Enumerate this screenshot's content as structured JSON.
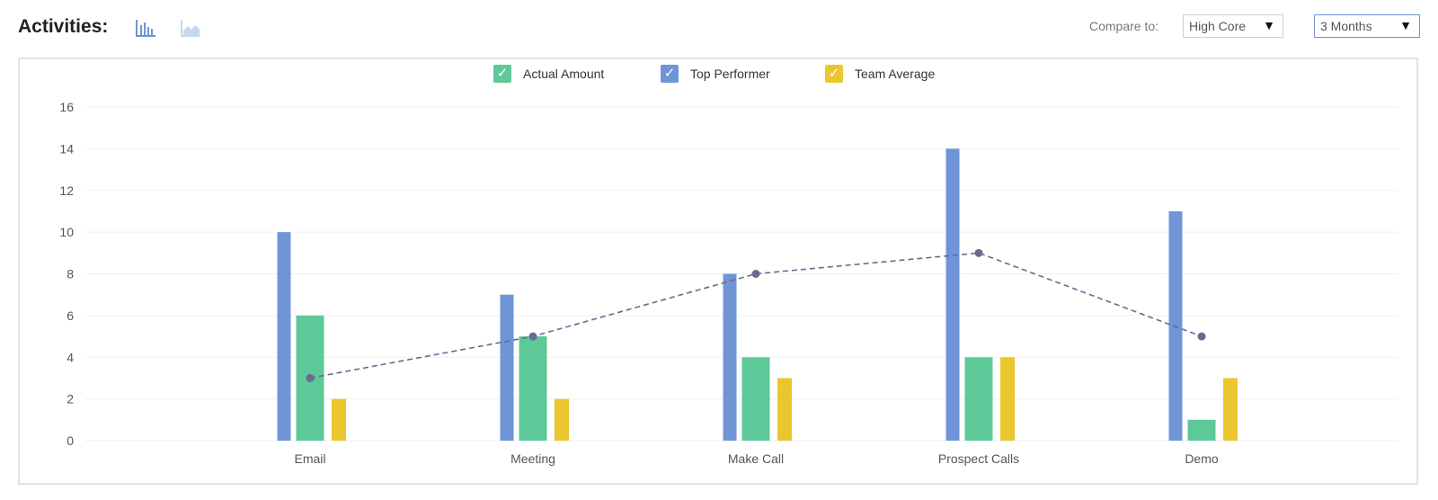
{
  "header": {
    "title": "Activities:",
    "compare_label": "Compare to:",
    "compare_value": "High Core",
    "period_value": "3 Months"
  },
  "icons": {
    "bar_chart": "bar-chart-icon",
    "area_chart": "area-chart-icon",
    "dropdown_arrow": "▼",
    "checkmark": "✓"
  },
  "colors": {
    "actual": "#5dc999",
    "top": "#6f94d8",
    "team": "#ebc72f",
    "line": "#6e6890",
    "grid": "#efefef",
    "axis_text": "#555555"
  },
  "legend": [
    {
      "label": "Actual Amount",
      "color": "#5dc999"
    },
    {
      "label": "Top Performer",
      "color": "#6f94d8"
    },
    {
      "label": "Team Average",
      "color": "#ebc72f"
    }
  ],
  "chart_data": {
    "type": "bar",
    "categories": [
      "Email",
      "Meeting",
      "Make Call",
      "Prospect Calls",
      "Demo"
    ],
    "series": [
      {
        "name": "Top Performer",
        "values": [
          10,
          7,
          8,
          14,
          11
        ]
      },
      {
        "name": "Actual Amount",
        "values": [
          6,
          5,
          4,
          4,
          1
        ]
      },
      {
        "name": "Team Average",
        "values": [
          2,
          2,
          3,
          4,
          3
        ]
      }
    ],
    "line": {
      "values": [
        3,
        5,
        8,
        9,
        5
      ],
      "style": "dashed"
    },
    "ylim": [
      0,
      16
    ],
    "yticks": [
      0,
      2,
      4,
      6,
      8,
      10,
      12,
      14,
      16
    ],
    "grid": true,
    "legend_position": "top-center"
  }
}
